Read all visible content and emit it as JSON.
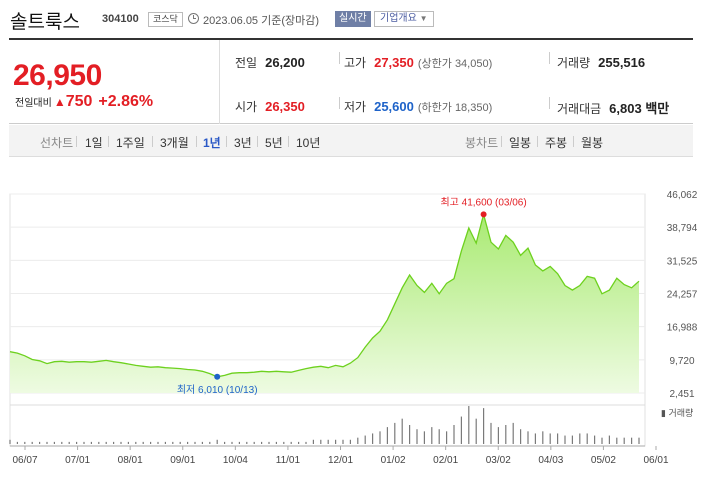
{
  "header": {
    "stock_name": "솔트룩스",
    "stock_code": "304100",
    "market": "코스닥",
    "as_of": "2023.06.05 기준(장마감)",
    "live_label": "실시간",
    "company_info_label": "기업개요",
    "icons": [
      "clock-icon",
      "dropdown-caret-icon"
    ]
  },
  "price": {
    "current": "26,950",
    "change_label": "전일대비",
    "change_value": "750",
    "change_percent": "+2.86%",
    "prev_close_label": "전일",
    "prev_close": "26,200",
    "high_label": "고가",
    "high": "27,350",
    "upper_limit": "(상한가 34,050)",
    "volume_label": "거래량",
    "volume": "255,516",
    "open_label": "시가",
    "open": "26,350",
    "low_label": "저가",
    "low": "25,600",
    "lower_limit": "(하한가 18,350)",
    "amount_label": "거래대금",
    "amount": "6,803 백만",
    "colors": {
      "up": "#e31e24",
      "down": "#1e63c9"
    }
  },
  "tabs": {
    "line_chart_label": "선차트",
    "periods": [
      "1일",
      "1주일",
      "3개월",
      "1년",
      "3년",
      "5년",
      "10년"
    ],
    "selected_period": "1년",
    "candle_chart_label": "봉차트",
    "candles": [
      "일봉",
      "주봉",
      "월봉"
    ]
  },
  "chart_data": {
    "type": "area",
    "title": "",
    "x_ticks": [
      "06/07",
      "07/01",
      "08/01",
      "09/01",
      "10/04",
      "11/01",
      "12/01",
      "01/02",
      "02/01",
      "03/02",
      "04/03",
      "05/02",
      "06/01"
    ],
    "y_ticks": [
      46062,
      38794,
      31525,
      24257,
      16988,
      9720,
      2451
    ],
    "ylim": [
      2451,
      46062
    ],
    "annotations": {
      "high": {
        "label": "최고 41,600 (03/06)",
        "value": 41600,
        "date": "03/06"
      },
      "low": {
        "label": "최저 6,010 (10/13)",
        "value": 6010,
        "date": "10/13"
      }
    },
    "volume_label": "거래량",
    "series": [
      {
        "values": [
          11500,
          11200,
          10600,
          9800,
          9500,
          8900,
          9300,
          9400,
          9200,
          9300,
          9300,
          9200,
          9400,
          9600,
          9300,
          9100,
          8800,
          8500,
          8300,
          8100,
          8200,
          8000,
          7900,
          7800,
          7600,
          7500,
          7200,
          6700,
          6010,
          6300,
          6800,
          6900,
          6900,
          7000,
          7200,
          7100,
          7200,
          7100,
          7000,
          7400,
          7800,
          8100,
          8300,
          8000,
          8500,
          8200,
          9000,
          10200,
          12500,
          14500,
          16000,
          18500,
          22000,
          25500,
          28300,
          26000,
          24500,
          26500,
          24200,
          26500,
          27500,
          33600,
          38600,
          35300,
          41600,
          35500,
          34000,
          37000,
          35500,
          32600,
          34200,
          30500,
          29200,
          30200,
          28600,
          26000,
          25000,
          26000,
          28000,
          27600,
          24200,
          25000,
          27600,
          26200,
          25500,
          26950
        ],
        "color": "#6dd11e"
      }
    ],
    "volume": [
      2,
      1,
      1,
      1,
      1,
      1,
      1,
      1,
      1,
      1,
      1,
      1,
      1,
      1,
      1,
      1,
      1,
      1,
      1,
      1,
      1,
      1,
      1,
      1,
      1,
      1,
      1,
      1,
      2,
      1,
      1,
      1,
      1,
      1,
      1,
      1,
      1,
      1,
      1,
      1,
      1,
      2,
      2,
      2,
      2,
      2,
      2,
      3,
      4,
      5,
      6,
      8,
      10,
      12,
      9,
      7,
      6,
      8,
      7,
      6,
      9,
      13,
      18,
      12,
      17,
      10,
      8,
      9,
      10,
      7,
      6,
      5,
      6,
      5,
      5,
      4,
      4,
      5,
      5,
      4,
      3,
      4,
      3,
      3,
      3,
      3
    ]
  }
}
